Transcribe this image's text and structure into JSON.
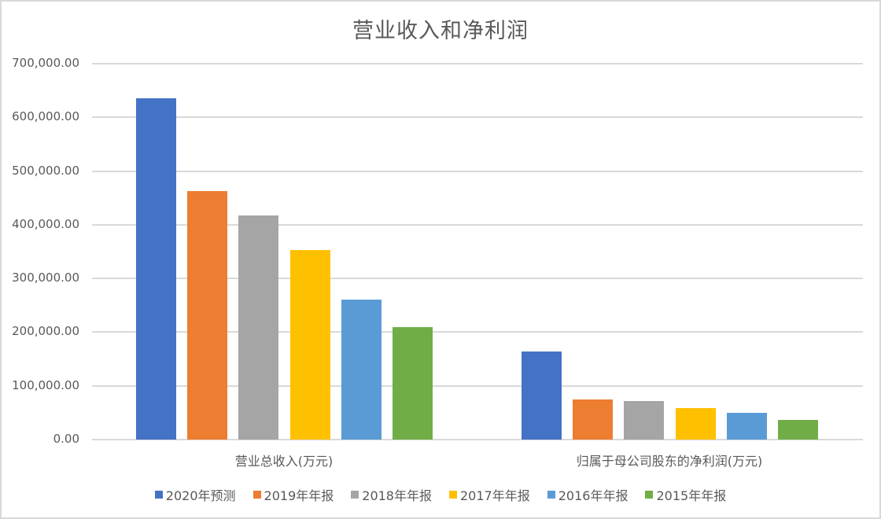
{
  "chart_data": {
    "type": "bar",
    "title": "营业收入和净利润",
    "xlabel": "",
    "ylabel": "",
    "ylim": [
      0,
      700000
    ],
    "yticks": [
      "0.00",
      "100,000.00",
      "200,000.00",
      "300,000.00",
      "400,000.00",
      "500,000.00",
      "600,000.00",
      "700,000.00"
    ],
    "grid": true,
    "legend_position": "bottom",
    "categories": [
      "营业总收入(万元)",
      "归属于母公司股东的净利润(万元)"
    ],
    "series": [
      {
        "name": "2020年预测",
        "color": "#4472c4",
        "values": [
          635000,
          164600
        ]
      },
      {
        "name": "2019年年报",
        "color": "#ed7d31",
        "values": [
          463000,
          74400
        ]
      },
      {
        "name": "2018年年报",
        "color": "#a5a5a5",
        "values": [
          417000,
          71400
        ]
      },
      {
        "name": "2017年年报",
        "color": "#ffc000",
        "values": [
          353000,
          58100
        ]
      },
      {
        "name": "2016年年报",
        "color": "#5b9bd5",
        "values": [
          261000,
          49300
        ]
      },
      {
        "name": "2015年年报",
        "color": "#70ad47",
        "values": [
          210000,
          36000
        ]
      }
    ]
  }
}
